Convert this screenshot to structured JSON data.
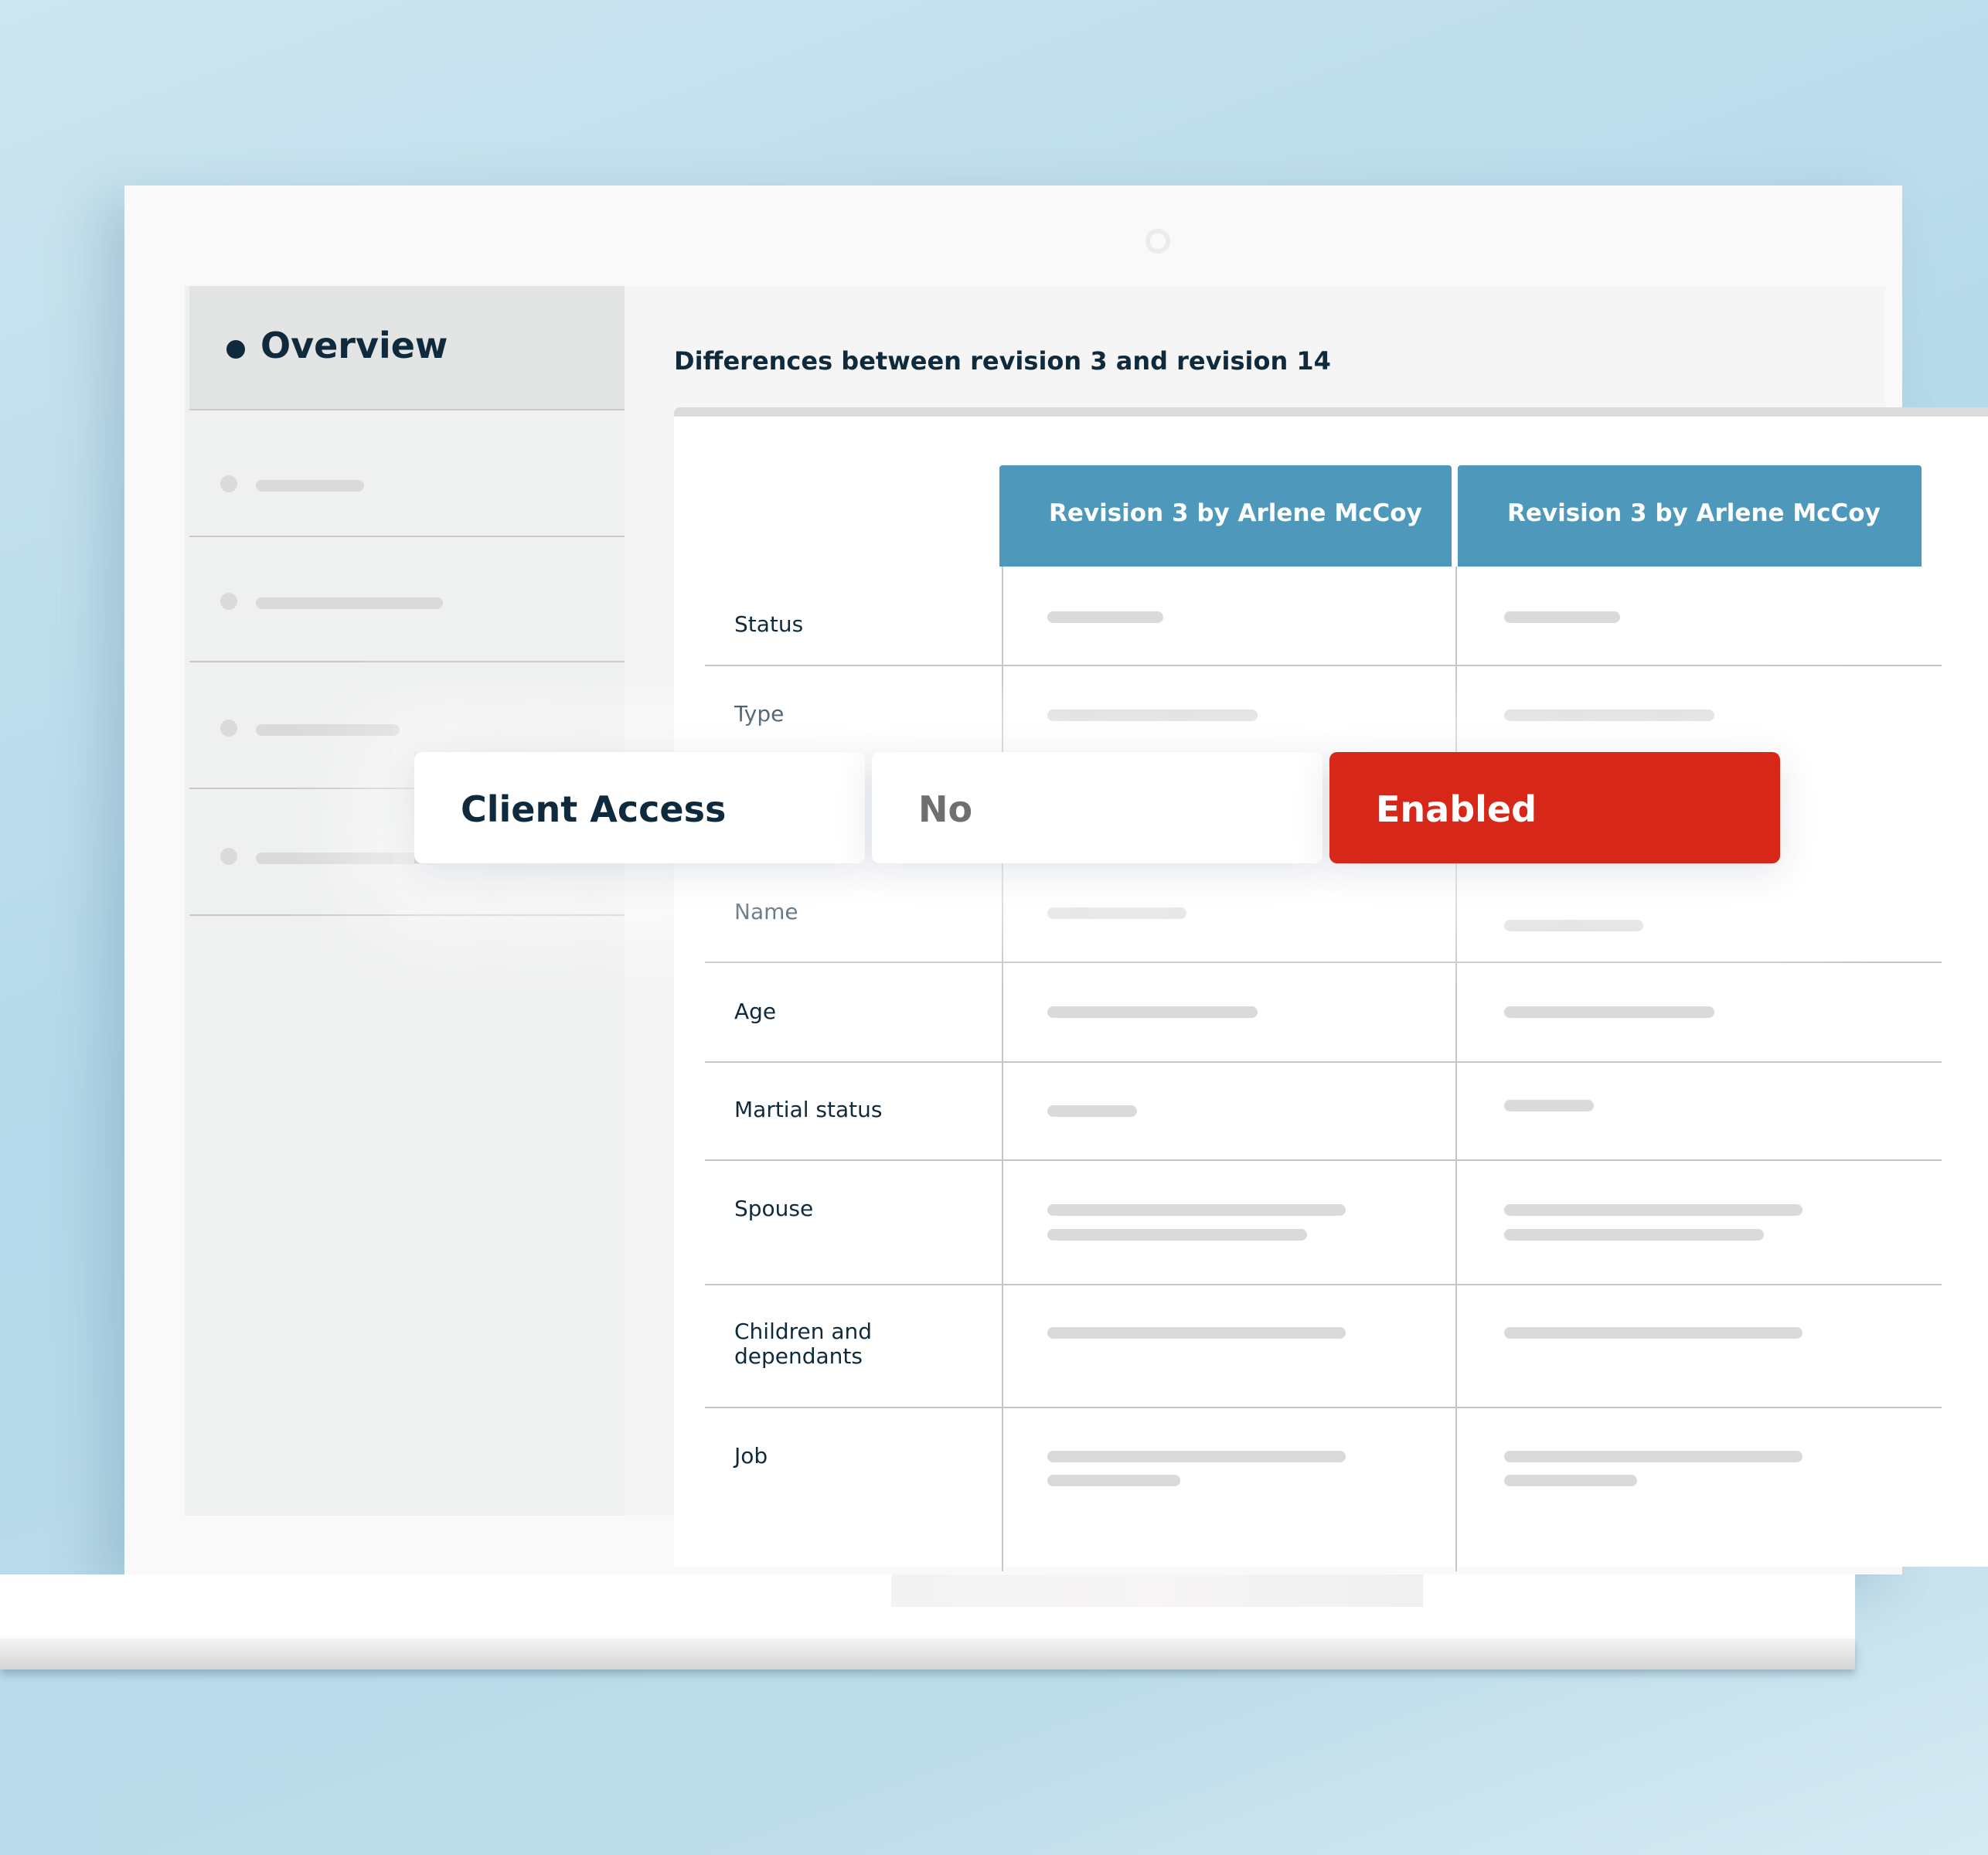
{
  "sidebar": {
    "active_item": "Overview"
  },
  "main": {
    "title": "Differences between revision 3 and revision 14",
    "columns": [
      "Revision 3 by Arlene McCoy",
      "Revision 3 by Arlene McCoy"
    ],
    "rows": [
      "Status",
      "Type",
      "Name",
      "Age",
      "Martial status",
      "Spouse",
      "Children and dependants",
      "Job"
    ]
  },
  "highlight": {
    "label": "Client Access",
    "old_value": "No",
    "new_value": "Enabled",
    "accent_color": "#d62718"
  },
  "colors": {
    "header": "#4e98bb",
    "text": "#0e2a3c"
  }
}
